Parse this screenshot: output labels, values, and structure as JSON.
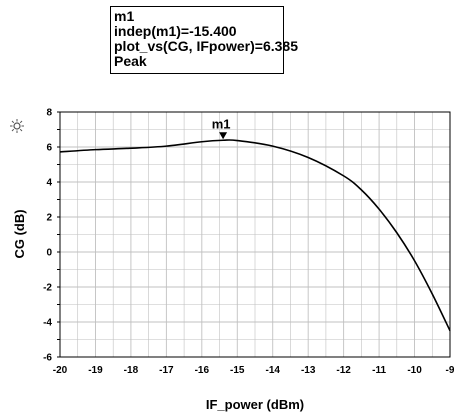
{
  "marker_readout": {
    "name": "m1",
    "indep": "indep(m1)=-15.400",
    "value": "plot_vs(CG, IFpower)=6.385",
    "mode": "Peak"
  },
  "chart_data": {
    "type": "line",
    "xlabel": "IF_power (dBm)",
    "ylabel": "CG (dB)",
    "xlim": [
      -20,
      -9
    ],
    "ylim": [
      -6,
      8
    ],
    "x_ticks": [
      "-20",
      "-19",
      "-18",
      "-17",
      "-16",
      "-15",
      "-14",
      "-13",
      "-12",
      "-11",
      "-10",
      "-9"
    ],
    "y_ticks": [
      "-6",
      "-4",
      "-2",
      "0",
      "2",
      "4",
      "6",
      "8"
    ],
    "grid": true,
    "series": [
      {
        "x": [
          -20,
          -19,
          -18,
          -17,
          -16,
          -15.4,
          -15,
          -14,
          -13,
          -12,
          -11.5,
          -11,
          -10.5,
          -10,
          -9.5,
          -9
        ],
        "y": [
          5.72,
          5.85,
          5.93,
          6.05,
          6.3,
          6.385,
          6.37,
          6.05,
          5.4,
          4.35,
          3.55,
          2.45,
          1.1,
          -0.5,
          -2.4,
          -4.5
        ]
      }
    ],
    "marker": {
      "label": "m1",
      "x": -15.4,
      "y": 6.385
    }
  },
  "colors": {
    "line": "#000000",
    "grid": "#c0c0c0",
    "marker": "#000000"
  }
}
